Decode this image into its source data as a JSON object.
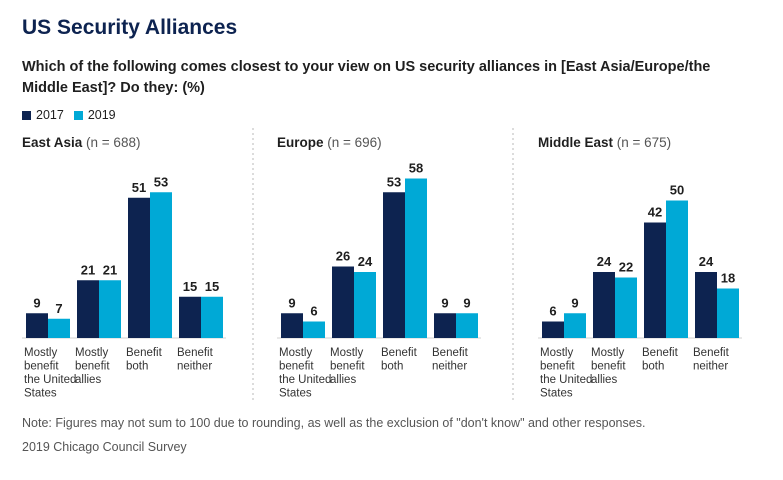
{
  "title": "US Security Alliances",
  "subtitle": "Which of the following comes closest to your view on US security alliances in [East Asia/Europe/the Middle East]? Do they: (%)",
  "legend": [
    {
      "label": "2017",
      "color": "#0d2350"
    },
    {
      "label": "2019",
      "color": "#00a9d6"
    }
  ],
  "note": "Note: Figures may not sum to 100 due to rounding, as well as the exclusion of \"don't know\" and other responses.",
  "source": "2019 Chicago Council Survey",
  "chart_data": [
    {
      "type": "bar",
      "title": "East Asia",
      "n_label": "(n = 688)",
      "categories": [
        "Mostly benefit the United States",
        "Mostly benefit allies",
        "Benefit both",
        "Benefit neither"
      ],
      "series": [
        {
          "name": "2017",
          "values": [
            9,
            21,
            51,
            15
          ]
        },
        {
          "name": "2019",
          "values": [
            7,
            21,
            53,
            15
          ]
        }
      ]
    },
    {
      "type": "bar",
      "title": "Europe",
      "n_label": "(n = 696)",
      "categories": [
        "Mostly benefit the United States",
        "Mostly benefit allies",
        "Benefit both",
        "Benefit neither"
      ],
      "series": [
        {
          "name": "2017",
          "values": [
            9,
            26,
            53,
            9
          ]
        },
        {
          "name": "2019",
          "values": [
            6,
            24,
            58,
            9
          ]
        }
      ]
    },
    {
      "type": "bar",
      "title": "Middle East",
      "n_label": "(n = 675)",
      "categories": [
        "Mostly benefit the United States",
        "Mostly benefit allies",
        "Benefit both",
        "Benefit neither"
      ],
      "series": [
        {
          "name": "2017",
          "values": [
            6,
            24,
            42,
            24
          ]
        },
        {
          "name": "2019",
          "values": [
            9,
            22,
            50,
            18
          ]
        }
      ]
    }
  ]
}
